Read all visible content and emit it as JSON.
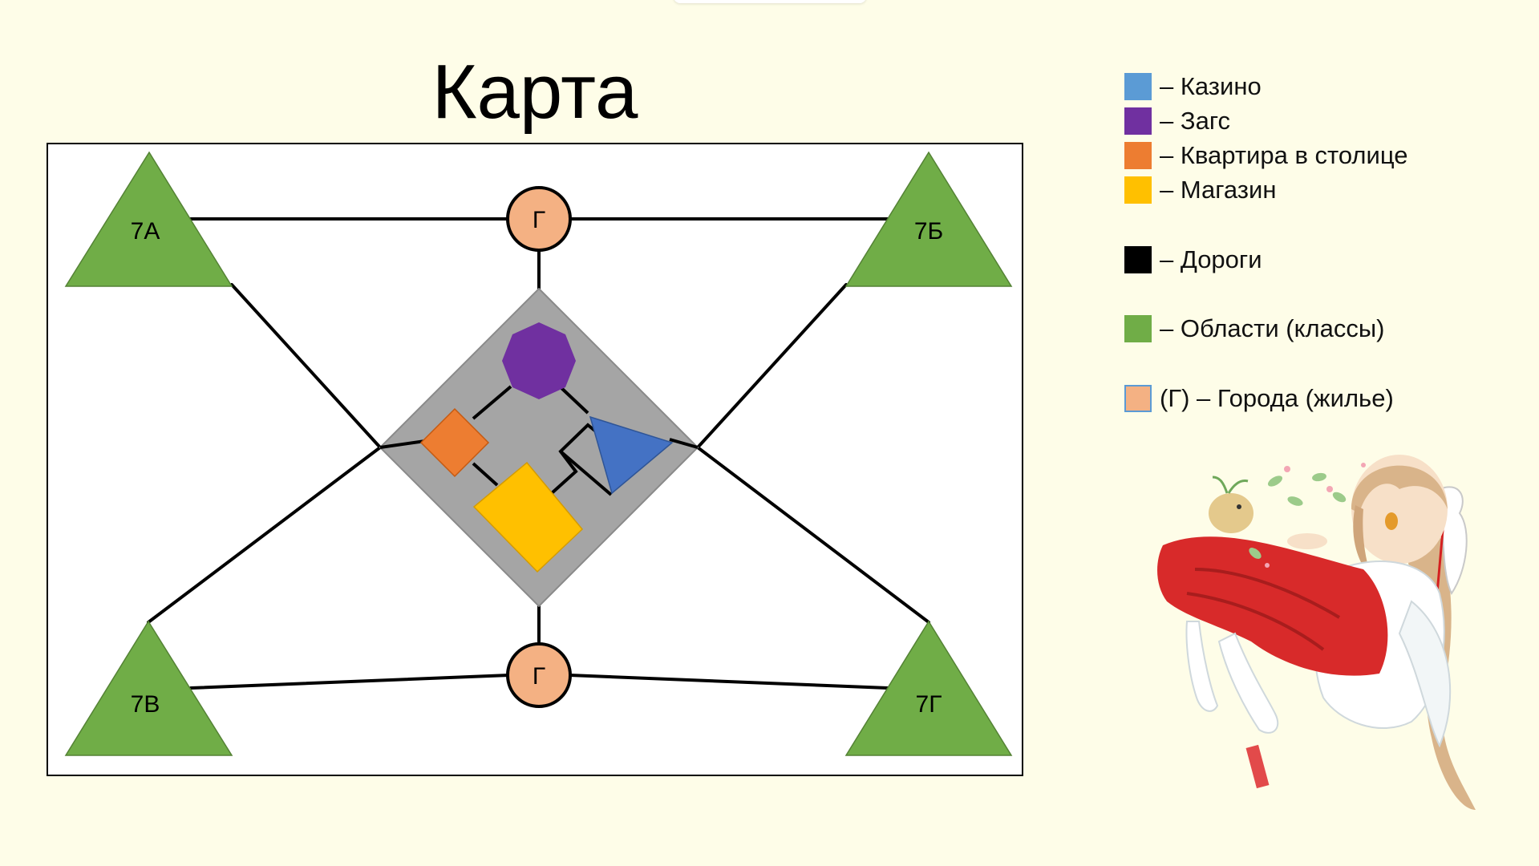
{
  "title": "Карта",
  "map": {
    "regions": [
      {
        "id": "7a",
        "label": "7А"
      },
      {
        "id": "7b",
        "label": "7Б"
      },
      {
        "id": "7v",
        "label": "7В"
      },
      {
        "id": "7g",
        "label": "7Г"
      }
    ],
    "cities": [
      {
        "id": "top",
        "label": "Г"
      },
      {
        "id": "bottom",
        "label": "Г"
      }
    ]
  },
  "legend": {
    "items": [
      {
        "label": "– Казино",
        "color": "#5b9bd5"
      },
      {
        "label": "– Загс",
        "color": "#7030a0"
      },
      {
        "label": "– Квартира в столице",
        "color": "#ed7d31"
      },
      {
        "label": "– Магазин",
        "color": "#ffc000"
      },
      {
        "label": "– Дороги",
        "color": "#000000"
      },
      {
        "label": "– Области (классы)",
        "color": "#70ad47"
      },
      {
        "label": "(Г) – Города (жилье)",
        "color": "#f4b183"
      }
    ]
  },
  "colors": {
    "background": "#fefde8",
    "region_fill": "#70ad47",
    "city_fill": "#f4b183",
    "center_fill": "#a5a5a5",
    "casino_fill": "#4472c4",
    "zags_fill": "#7030a0",
    "apartment_fill": "#ed7d31",
    "shop_fill": "#ffc000"
  },
  "illustration": {
    "name": "anime-shrine-maiden-character"
  }
}
